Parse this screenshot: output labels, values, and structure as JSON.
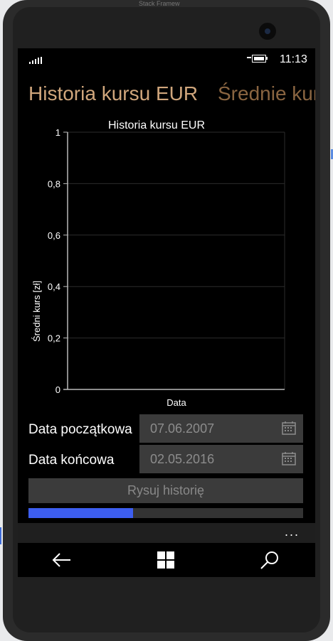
{
  "top_text": "Stack Framew",
  "status": {
    "time": "11:13"
  },
  "pivot": {
    "active_title": "Historia kursu EUR",
    "next_title": "Średnie kursy"
  },
  "chart_data": {
    "type": "line",
    "title": "Historia kursu EUR",
    "xlabel": "Data",
    "ylabel": "Średni kurs [zł]",
    "ylim": [
      0,
      1
    ],
    "yticks": [
      "0",
      "0,2",
      "0,4",
      "0,6",
      "0,8",
      "1"
    ],
    "series": []
  },
  "form": {
    "start_label": "Data początkowa",
    "start_value": "07.06.2007",
    "end_label": "Data końcowa",
    "end_value": "02.05.2016",
    "draw_button": "Rysuj historię",
    "progress": 0.38
  },
  "appbar": {
    "more": "..."
  },
  "icons": {
    "back": "back-arrow-icon",
    "windows": "windows-logo-icon",
    "search": "search-icon",
    "calendar": "calendar-icon"
  },
  "colors": {
    "accent": "#d0a67c",
    "progress": "#3d5ef0"
  }
}
